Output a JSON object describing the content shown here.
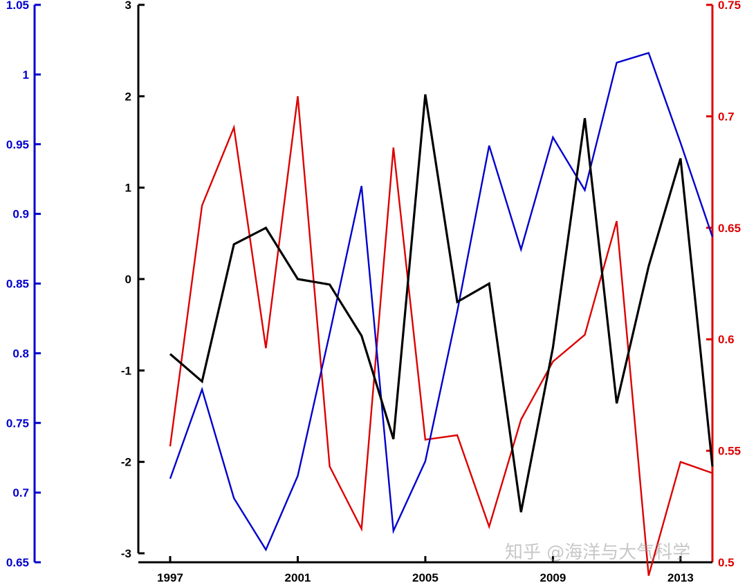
{
  "chart_data": {
    "type": "line",
    "title": "",
    "xlabel": "",
    "x": [
      1997,
      1998,
      1999,
      2000,
      2001,
      2002,
      2003,
      2004,
      2005,
      2006,
      2007,
      2008,
      2009,
      2010,
      2011,
      2012,
      2013,
      2014
    ],
    "xlim": [
      1997,
      2014
    ],
    "x_tick_labels": [
      "1997",
      "2001",
      "2005",
      "2009",
      "2013"
    ],
    "axes": {
      "left_outer": {
        "color": "#0000cc",
        "ylim": [
          0.65,
          1.05
        ],
        "tick_labels": [
          "0.65",
          "0.7",
          "0.75",
          "0.8",
          "0.85",
          "0.9",
          "0.95",
          "1",
          "1.05"
        ]
      },
      "left_inner": {
        "color": "#000000",
        "ylim": [
          -3,
          3
        ],
        "tick_labels": [
          "-3",
          "-2",
          "-1",
          "0",
          "1",
          "2",
          "3"
        ]
      },
      "right": {
        "color": "#dd0000",
        "ylim": [
          0.5,
          0.75
        ],
        "tick_labels": [
          "0.5",
          "0.55",
          "0.6",
          "0.65",
          "0.7",
          "0.75"
        ]
      }
    },
    "series": [
      {
        "axis": "left_inner",
        "color": "#000000",
        "values": [
          -0.82,
          -1.12,
          0.38,
          0.56,
          0.0,
          -0.06,
          -0.62,
          -1.75,
          2.02,
          -0.25,
          -0.05,
          -2.55,
          -0.75,
          1.76,
          -1.36,
          0.14,
          1.32,
          -2.05
        ]
      },
      {
        "axis": "left_outer",
        "color": "#0000cc",
        "values": [
          0.71,
          0.774,
          0.696,
          0.659,
          0.712,
          0.814,
          0.92,
          0.6725,
          0.7225,
          0.83,
          0.949,
          0.8745,
          0.955,
          0.917,
          1.0085,
          1.0155,
          0.951,
          0.8835
        ]
      },
      {
        "axis": "right",
        "color": "#dd0000",
        "values": [
          0.552,
          0.66,
          0.695,
          0.596,
          0.709,
          0.543,
          0.515,
          0.686,
          0.555,
          0.557,
          0.516,
          0.564,
          0.59,
          0.602,
          0.653,
          0.494,
          0.545,
          0.54
        ]
      }
    ]
  },
  "watermark": "知乎 @海洋与大气科学"
}
